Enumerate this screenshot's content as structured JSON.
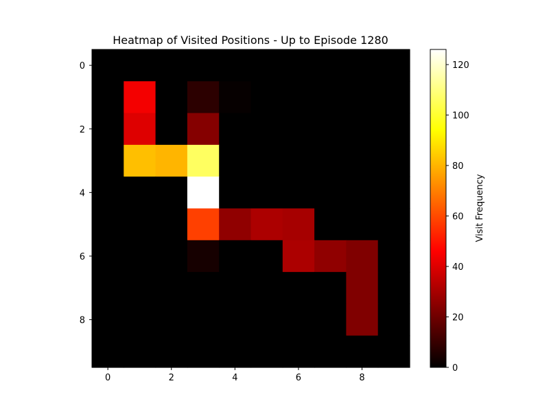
{
  "chart_data": {
    "type": "heatmap",
    "title": "Heatmap of Visited Positions - Up to Episode 1280",
    "xlabel": "",
    "ylabel": "",
    "colormap": "hot",
    "colorbar": {
      "label": "Visit Frequency",
      "range": [
        0,
        126
      ],
      "ticks": [
        0,
        20,
        40,
        60,
        80,
        100,
        120
      ]
    },
    "xlim": [
      -0.5,
      9.5
    ],
    "ylim": [
      9.5,
      -0.5
    ],
    "x_ticks": [
      0,
      2,
      4,
      6,
      8
    ],
    "y_ticks": [
      0,
      2,
      4,
      6,
      8
    ],
    "grid": false,
    "values": [
      [
        0,
        0,
        0,
        0,
        0,
        0,
        0,
        0,
        0,
        0
      ],
      [
        0,
        44,
        0,
        8,
        1,
        0,
        0,
        0,
        0,
        0
      ],
      [
        0,
        40,
        0,
        24,
        0,
        0,
        0,
        0,
        0,
        0
      ],
      [
        0,
        82,
        80,
        106,
        0,
        0,
        0,
        0,
        0,
        0
      ],
      [
        0,
        0,
        0,
        126,
        0,
        0,
        0,
        0,
        0,
        0
      ],
      [
        0,
        0,
        0,
        58,
        26,
        31,
        30,
        0,
        0,
        0
      ],
      [
        0,
        0,
        0,
        4,
        0,
        0,
        31,
        26,
        23,
        0
      ],
      [
        0,
        0,
        0,
        0,
        0,
        0,
        0,
        0,
        23,
        0
      ],
      [
        0,
        0,
        0,
        0,
        0,
        0,
        0,
        0,
        23,
        0
      ],
      [
        0,
        0,
        0,
        0,
        0,
        0,
        0,
        0,
        0,
        0
      ]
    ]
  }
}
